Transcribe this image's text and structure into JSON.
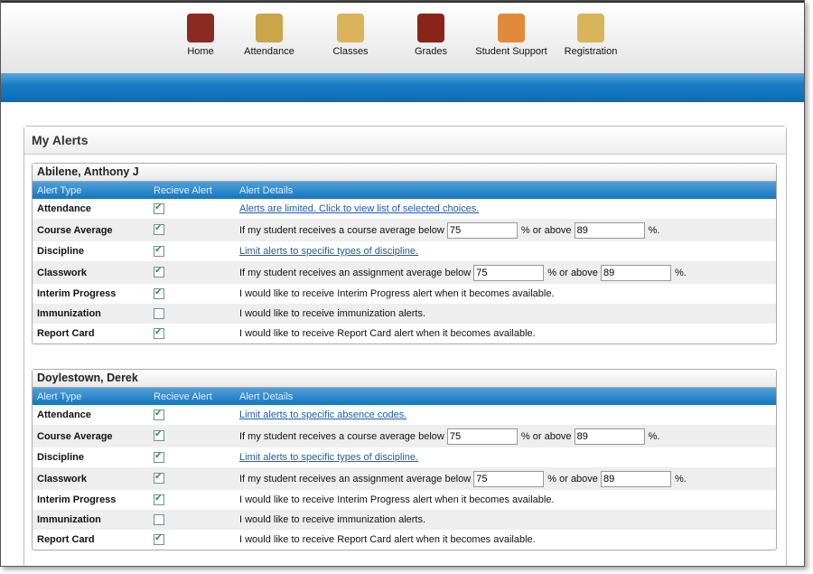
{
  "nav": [
    {
      "label": "Home",
      "icon": "home-icon",
      "color": "#8b2a22"
    },
    {
      "label": "Attendance",
      "icon": "attendance-icon",
      "color": "#c9a64a"
    },
    {
      "label": "Classes",
      "icon": "classes-icon",
      "color": "#d9b45a"
    },
    {
      "label": "Grades",
      "icon": "grades-icon",
      "color": "#8a2418"
    },
    {
      "label": "Student Support",
      "icon": "student-support-icon",
      "color": "#e08a3a"
    },
    {
      "label": "Registration",
      "icon": "registration-icon",
      "color": "#d8b45a"
    }
  ],
  "panel_title": "My Alerts",
  "headers": [
    "Alert Type",
    "Recieve Alert",
    "Alert Details"
  ],
  "students": [
    {
      "name": "Abilene, Anthony J",
      "rows": [
        {
          "type": "Attendance",
          "checked": true,
          "link": "Alerts are limited. Click to view list of selected choices."
        },
        {
          "type": "Course Average",
          "checked": true,
          "pre": "If my student receives a course average below",
          "low": "75",
          "mid": "% or above",
          "high": "89",
          "post": "%."
        },
        {
          "type": "Discipline",
          "checked": true,
          "link": "Limit alerts to specific types of discipline."
        },
        {
          "type": "Classwork",
          "checked": true,
          "pre": "If my student receives an assignment average below",
          "low": "75",
          "mid": "% or above",
          "high": "89",
          "post": "%."
        },
        {
          "type": "Interim Progress",
          "checked": true,
          "text": "I would like to receive Interim Progress alert when it becomes available."
        },
        {
          "type": "Immunization",
          "checked": false,
          "text": "I would like to receive immunization alerts."
        },
        {
          "type": "Report Card",
          "checked": true,
          "text": "I would like to receive Report Card alert when it becomes available."
        }
      ]
    },
    {
      "name": "Doylestown, Derek",
      "rows": [
        {
          "type": "Attendance",
          "checked": true,
          "link": "Limit alerts to specific absence codes."
        },
        {
          "type": "Course Average",
          "checked": true,
          "pre": "If my student receives a course average below",
          "low": "75",
          "mid": "% or above",
          "high": "89",
          "post": "%."
        },
        {
          "type": "Discipline",
          "checked": true,
          "link": "Limit alerts to specific types of discipline."
        },
        {
          "type": "Classwork",
          "checked": true,
          "pre": "If my student receives an assignment average below",
          "low": "75",
          "mid": "% or above",
          "high": "89",
          "post": "%."
        },
        {
          "type": "Interim Progress",
          "checked": true,
          "text": "I would like to receive Interim Progress alert when it becomes available."
        },
        {
          "type": "Immunization",
          "checked": false,
          "text": "I would like to receive immunization alerts."
        },
        {
          "type": "Report Card",
          "checked": true,
          "text": "I would like to receive Report Card alert when it becomes available."
        }
      ]
    }
  ]
}
